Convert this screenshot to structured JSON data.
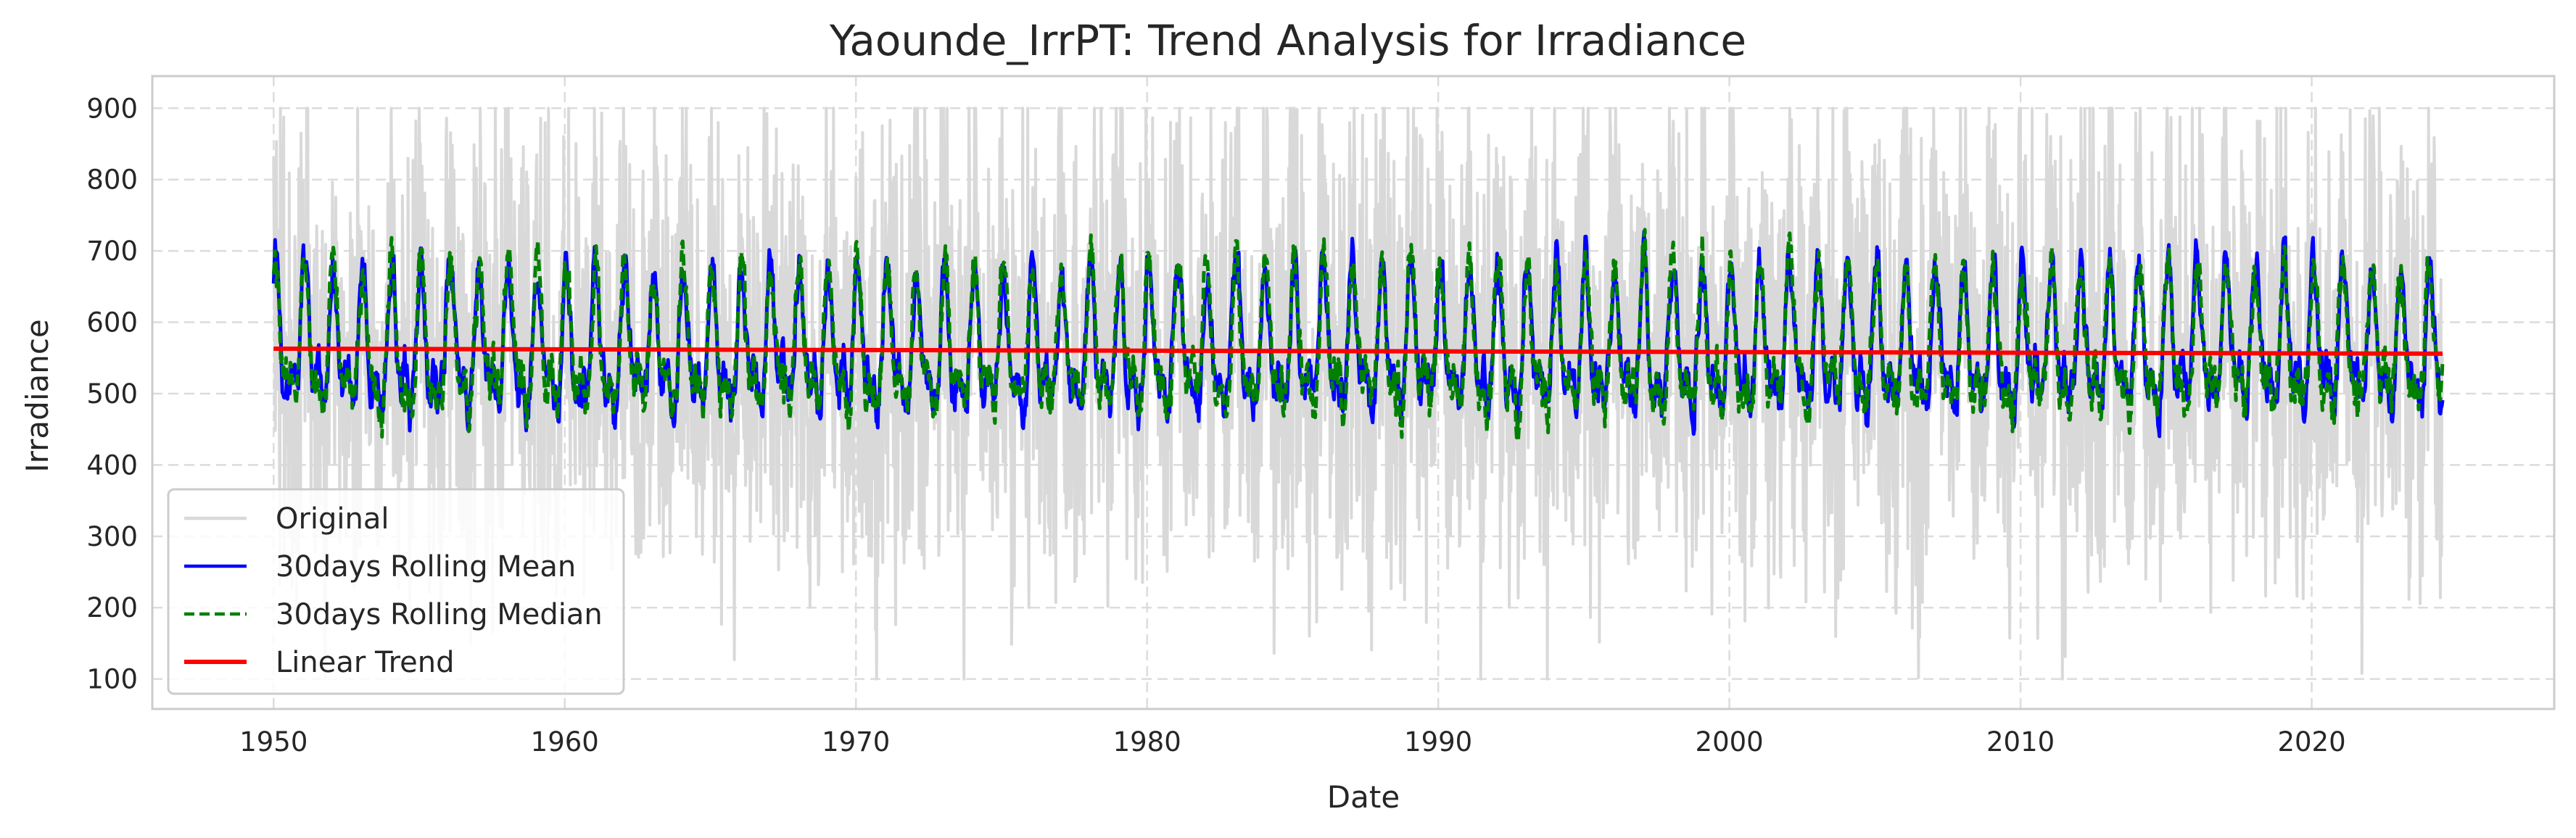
{
  "chart_data": {
    "type": "line",
    "title": "Yaounde_IrrPT: Trend Analysis for Irradiance",
    "xlabel": "Date",
    "ylabel": "Irradiance",
    "xlim": [
      "1945-11-01",
      "2028-05-01"
    ],
    "ylim": [
      58,
      945
    ],
    "x_ticks": [
      {
        "value": "1950-01-01",
        "label": "1950"
      },
      {
        "value": "1960-01-01",
        "label": "1960"
      },
      {
        "value": "1970-01-01",
        "label": "1970"
      },
      {
        "value": "1980-01-01",
        "label": "1980"
      },
      {
        "value": "1990-01-01",
        "label": "1990"
      },
      {
        "value": "2000-01-01",
        "label": "2000"
      },
      {
        "value": "2010-01-01",
        "label": "2010"
      },
      {
        "value": "2020-01-01",
        "label": "2020"
      }
    ],
    "y_ticks": [
      100,
      200,
      300,
      400,
      500,
      600,
      700,
      800,
      900
    ],
    "grid": true,
    "legend_position": "lower-left",
    "series": [
      {
        "name": "Original",
        "color": "#d9d9d9",
        "style": "solid",
        "x_range": [
          "1950-01-01",
          "2024-06-30"
        ],
        "mean": 560,
        "typical_min": 200,
        "typical_max": 860,
        "observed_min": 100,
        "observed_max": 900,
        "seasonal_cycle": "annual"
      },
      {
        "name": "30days Rolling Mean",
        "color": "#0000ff",
        "style": "solid",
        "x_range": [
          "1950-01-01",
          "2024-06-30"
        ],
        "mean": 560,
        "typical_min": 440,
        "typical_max": 700,
        "observed_min": 355,
        "observed_max": 805,
        "seasonal_cycle": "annual"
      },
      {
        "name": "30days Rolling Median",
        "color": "#008000",
        "style": "dashed",
        "x_range": [
          "1950-01-01",
          "2024-06-30"
        ],
        "mean": 560,
        "typical_min": 440,
        "typical_max": 700,
        "observed_min": 355,
        "observed_max": 805,
        "seasonal_cycle": "annual"
      },
      {
        "name": "Linear Trend",
        "color": "#ff0000",
        "style": "solid",
        "x": [
          "1950-01-01",
          "2024-06-30"
        ],
        "y": [
          563,
          556
        ]
      }
    ]
  }
}
